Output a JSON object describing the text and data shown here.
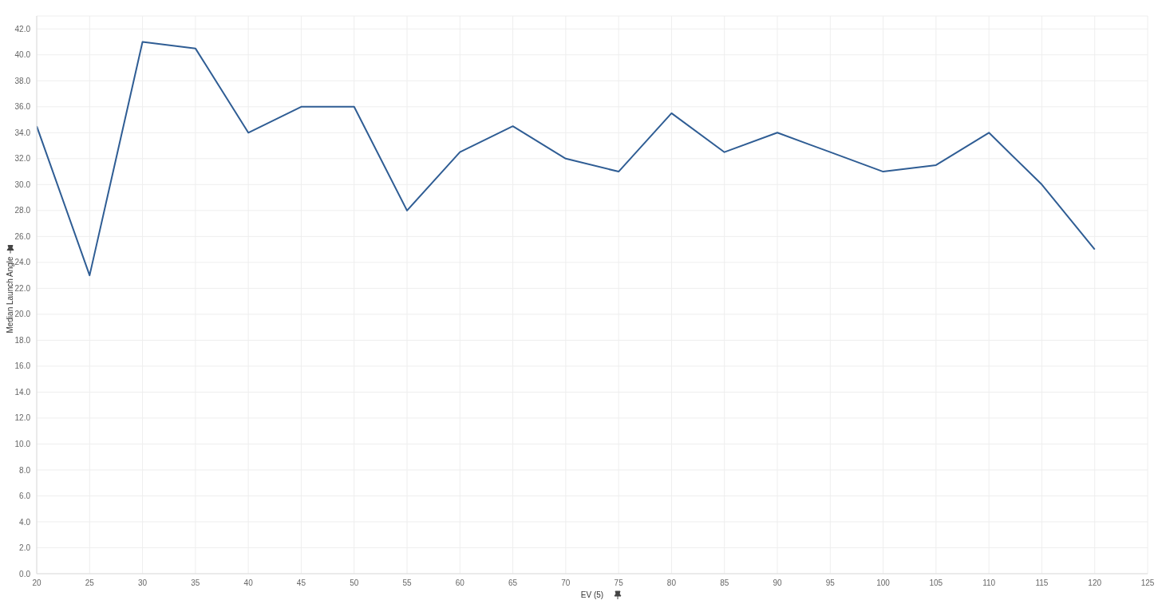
{
  "chart_data": {
    "type": "line",
    "xlabel": "EV (5)",
    "ylabel": "Median Launch Angle",
    "x": [
      20,
      25,
      30,
      35,
      40,
      45,
      50,
      55,
      60,
      65,
      70,
      75,
      80,
      85,
      90,
      95,
      100,
      105,
      110,
      115,
      120
    ],
    "series": [
      {
        "color": "#2f5d94",
        "values": [
          34.5,
          23,
          41,
          40.5,
          34,
          36,
          36,
          28,
          32.5,
          34.5,
          32,
          31,
          35.5,
          32.5,
          34,
          32.5,
          31,
          31.5,
          34,
          30,
          25
        ]
      }
    ],
    "xlim": [
      20,
      125
    ],
    "xticks": [
      20,
      25,
      30,
      35,
      40,
      45,
      50,
      55,
      60,
      65,
      70,
      75,
      80,
      85,
      90,
      95,
      100,
      105,
      110,
      115,
      120,
      125
    ],
    "ylim": [
      0,
      43
    ],
    "yticks": [
      {
        "value": 0,
        "label": "0.0"
      },
      {
        "value": 2,
        "label": "2.0"
      },
      {
        "value": 4,
        "label": "4.0"
      },
      {
        "value": 6,
        "label": "6.0"
      },
      {
        "value": 8,
        "label": "8.0"
      },
      {
        "value": 10,
        "label": "10.0"
      },
      {
        "value": 12,
        "label": "12.0"
      },
      {
        "value": 14,
        "label": "14.0"
      },
      {
        "value": 16,
        "label": "16.0"
      },
      {
        "value": 18,
        "label": "18.0"
      },
      {
        "value": 20,
        "label": "20.0"
      },
      {
        "value": 22,
        "label": "22.0"
      },
      {
        "value": 24,
        "label": "24.0"
      },
      {
        "value": 26,
        "label": "26.0"
      },
      {
        "value": 28,
        "label": "28.0"
      },
      {
        "value": 30,
        "label": "30.0"
      },
      {
        "value": 32,
        "label": "32.0"
      },
      {
        "value": 34,
        "label": "34.0"
      },
      {
        "value": 36,
        "label": "36.0"
      },
      {
        "value": 38,
        "label": "38.0"
      },
      {
        "value": 40,
        "label": "40.0"
      },
      {
        "value": 42,
        "label": "42.0"
      }
    ],
    "grid": true,
    "legend": false,
    "marker": "none",
    "line_style": "solid"
  }
}
